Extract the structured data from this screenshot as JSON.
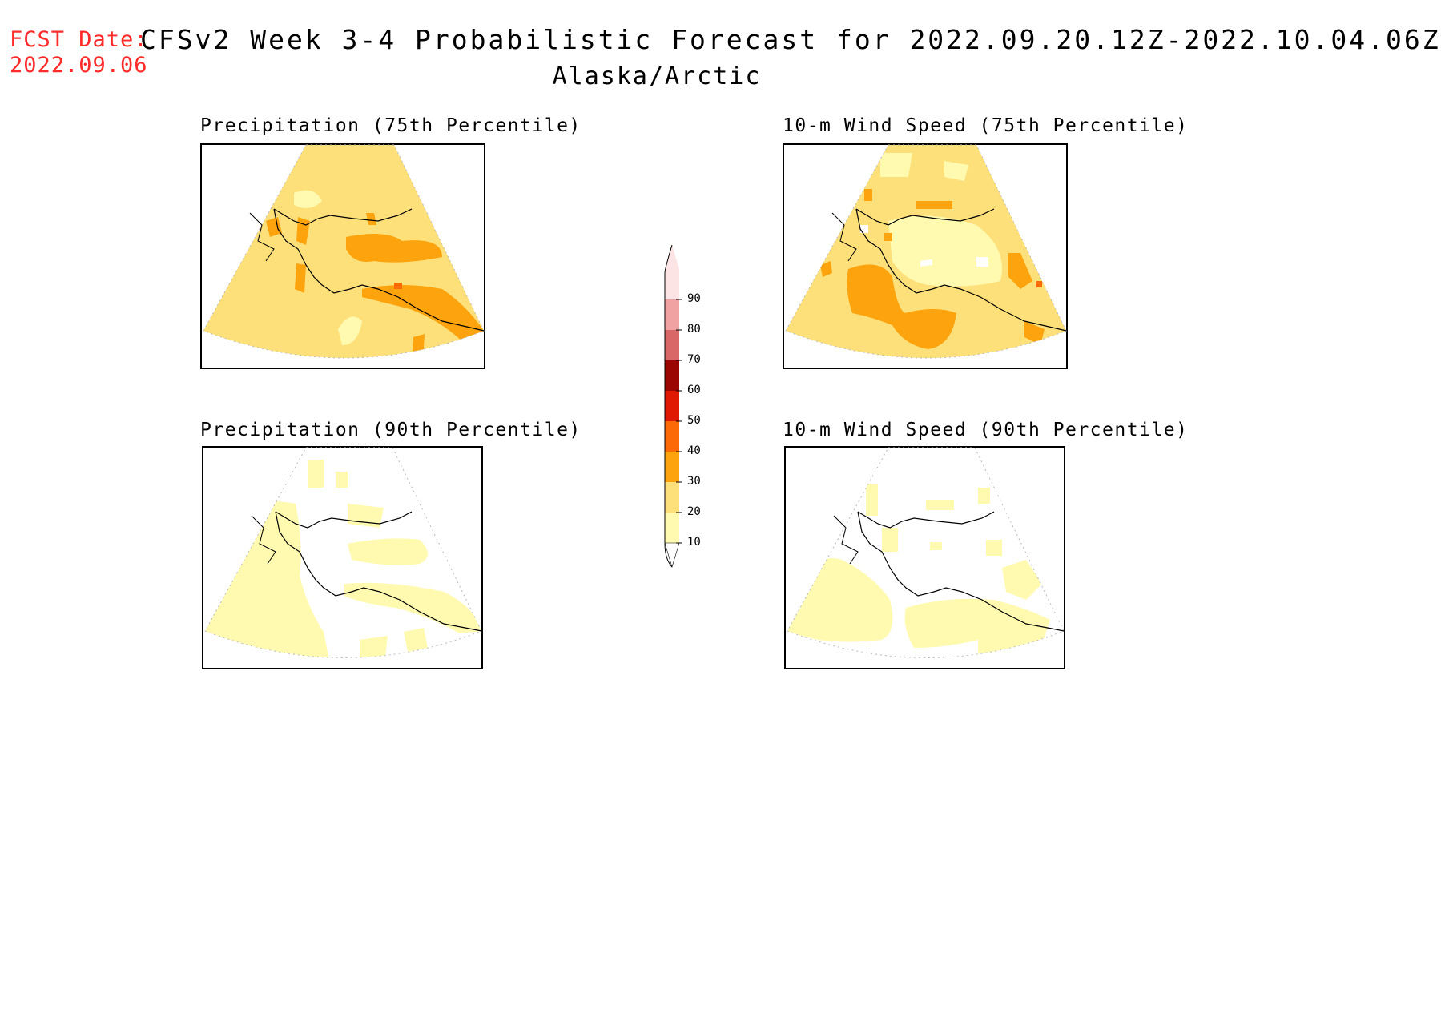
{
  "header": {
    "fcst_label": "FCST Date:",
    "fcst_date": "2022.09.06",
    "title": "CFSv2 Week 3-4 Probabilistic Forecast for 2022.09.20.12Z-2022.10.04.06Z",
    "subtitle": "Alaska/Arctic"
  },
  "panels": [
    {
      "title": "Precipitation (75th Percentile)",
      "variable": "Precipitation",
      "percentile": "75th",
      "dominant_category": "20-30",
      "max_category": "40-50"
    },
    {
      "title": "10-m Wind Speed (75th Percentile)",
      "variable": "10-m Wind Speed",
      "percentile": "75th",
      "dominant_category": "20-30",
      "max_category": "40-50"
    },
    {
      "title": "Precipitation (90th Percentile)",
      "variable": "Precipitation",
      "percentile": "90th",
      "dominant_category": "10-20",
      "max_category": "10-20"
    },
    {
      "title": "10-m Wind Speed (90th Percentile)",
      "variable": "10-m Wind Speed",
      "percentile": "90th",
      "dominant_category": "10-20",
      "max_category": "10-20"
    }
  ],
  "colorbar": {
    "levels": [
      "10",
      "20",
      "30",
      "40",
      "50",
      "60",
      "70",
      "80",
      "90"
    ],
    "colors": [
      "#fffab0",
      "#fde07a",
      "#fca30e",
      "#fc6a08",
      "#e01a02",
      "#9c0602",
      "#d96767",
      "#f0a1a1",
      "#fde4e4"
    ]
  },
  "colors": {
    "fcst_text": "#ff2a2a",
    "white": "#ffffff",
    "cat_10": "#fffab0",
    "cat_20": "#fde07a",
    "cat_30": "#fca30e",
    "cat_40": "#fc6a08",
    "cat_50": "#e01a02"
  }
}
